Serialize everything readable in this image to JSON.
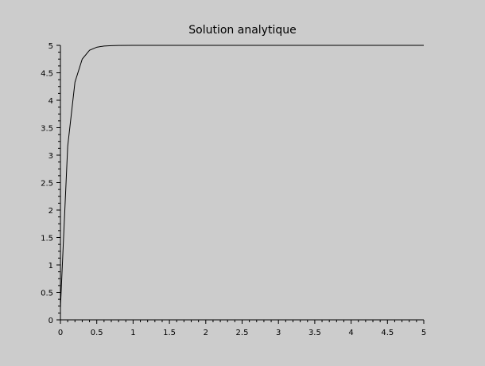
{
  "chart_data": {
    "type": "line",
    "title": "Solution analytique",
    "xlabel": "",
    "ylabel": "",
    "xlim": [
      0,
      5
    ],
    "ylim": [
      0,
      5
    ],
    "grid": false,
    "x_ticks": [
      "0",
      "0.5",
      "1",
      "1.5",
      "2",
      "2.5",
      "3",
      "3.5",
      "4",
      "4.5",
      "5"
    ],
    "y_ticks": [
      "0",
      "0.5",
      "1",
      "1.5",
      "2",
      "2.5",
      "3",
      "3.5",
      "4",
      "4.5",
      "5"
    ],
    "x_tick_values": [
      0,
      0.5,
      1,
      1.5,
      2,
      2.5,
      3,
      3.5,
      4,
      4.5,
      5
    ],
    "y_tick_values": [
      0,
      0.5,
      1,
      1.5,
      2,
      2.5,
      3,
      3.5,
      4,
      4.5,
      5
    ],
    "series": [
      {
        "color": "#000000",
        "x": [
          0,
          0.1,
          0.2,
          0.3,
          0.4,
          0.5,
          0.6,
          0.7,
          0.8,
          1.0,
          1.5,
          2.0,
          2.5,
          3.0,
          3.5,
          4.0,
          4.5,
          5.0
        ],
        "y": [
          0.22,
          3.16,
          4.33,
          4.75,
          4.91,
          4.966,
          4.988,
          4.995,
          4.998,
          5.0,
          5.0,
          5.0,
          5.0,
          5.0,
          5.0,
          5.0,
          5.0,
          5.0
        ]
      }
    ]
  }
}
